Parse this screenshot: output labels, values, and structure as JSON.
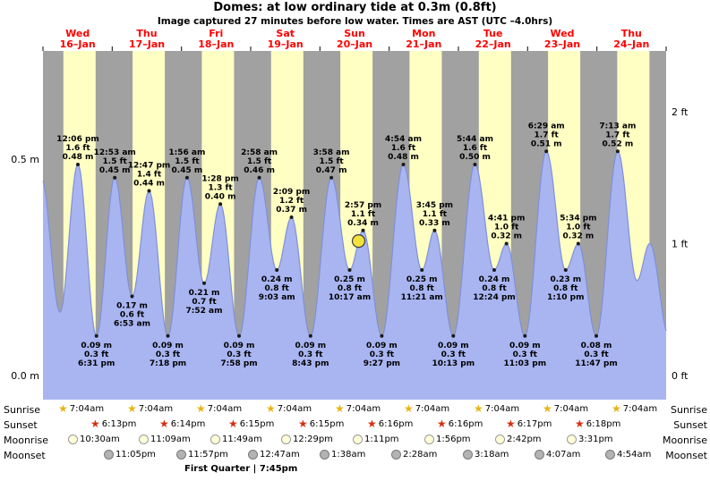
{
  "header": {
    "title": "Domes: at low  ordinary tide at 0.3m (0.8ft)",
    "subtitle": "Image captured 27 minutes before low water. Times are AST (UTC –4.0hrs)"
  },
  "chart_data": {
    "type": "area",
    "title": "Domes: at low ordinary tide at 0.3m (0.8ft)",
    "x_range_days": 9,
    "ylim_ft": [
      0,
      2.64
    ],
    "unit_left": "m",
    "unit_right": "ft",
    "y_axis_left": [
      {
        "label": "0.5 m",
        "ft": 1.64
      },
      {
        "label": "0.0 m",
        "ft": 0
      }
    ],
    "y_axis_right": [
      {
        "label": "2 ft",
        "ft": 2
      },
      {
        "label": "1 ft",
        "ft": 1
      },
      {
        "label": "0 ft",
        "ft": 0
      }
    ],
    "days": [
      {
        "name": "Wed",
        "date": "16–Jan"
      },
      {
        "name": "Thu",
        "date": "17–Jan"
      },
      {
        "name": "Fri",
        "date": "18–Jan"
      },
      {
        "name": "Sat",
        "date": "19–Jan"
      },
      {
        "name": "Sun",
        "date": "20–Jan"
      },
      {
        "name": "Mon",
        "date": "21–Jan"
      },
      {
        "name": "Tue",
        "date": "22–Jan"
      },
      {
        "name": "Wed",
        "date": "23–Jan"
      },
      {
        "name": "Thu",
        "date": "24–Jan"
      }
    ],
    "daylight": {
      "sunrise_hour": 7.07,
      "sunset_hour": 18.25
    },
    "extremes": [
      {
        "day": 0,
        "hour": -0.6,
        "ft": 1.5
      },
      {
        "day": 0,
        "hour": 5.9,
        "ft": 0.48
      },
      {
        "day": 0,
        "hour": 12.1,
        "ft": 1.6,
        "pos": "above",
        "lines": [
          "12:06 pm",
          "1.6 ft",
          "0.48 m"
        ]
      },
      {
        "day": 0,
        "hour": 18.52,
        "ft": 0.3,
        "pos": "below",
        "lines": [
          "0.09 m",
          "0.3 ft",
          "6:31 pm"
        ]
      },
      {
        "day": 1,
        "hour": 0.88,
        "ft": 1.5,
        "pos": "above",
        "lines": [
          "12:53 am",
          "1.5 ft",
          "0.45 m"
        ]
      },
      {
        "day": 1,
        "hour": 6.88,
        "ft": 0.6,
        "pos": "below",
        "lines": [
          "0.17 m",
          "0.6 ft",
          "6:53 am"
        ]
      },
      {
        "day": 1,
        "hour": 12.78,
        "ft": 1.4,
        "pos": "above",
        "lines": [
          "12:47 pm",
          "1.4 ft",
          "0.44 m"
        ]
      },
      {
        "day": 1,
        "hour": 19.3,
        "ft": 0.3,
        "pos": "below",
        "lines": [
          "0.09 m",
          "0.3 ft",
          "7:18 pm"
        ]
      },
      {
        "day": 2,
        "hour": 1.93,
        "ft": 1.5,
        "pos": "above",
        "lines": [
          "1:56 am",
          "1.5 ft",
          "0.45 m"
        ]
      },
      {
        "day": 2,
        "hour": 7.87,
        "ft": 0.7,
        "pos": "below",
        "lines": [
          "0.21 m",
          "0.7 ft",
          "7:52 am"
        ]
      },
      {
        "day": 2,
        "hour": 13.47,
        "ft": 1.3,
        "pos": "above",
        "lines": [
          "1:28 pm",
          "1.3 ft",
          "0.40 m"
        ]
      },
      {
        "day": 2,
        "hour": 19.97,
        "ft": 0.3,
        "pos": "below",
        "lines": [
          "0.09 m",
          "0.3 ft",
          "7:58 pm"
        ]
      },
      {
        "day": 3,
        "hour": 2.97,
        "ft": 1.5,
        "pos": "above",
        "lines": [
          "2:58 am",
          "1.5 ft",
          "0.46 m"
        ]
      },
      {
        "day": 3,
        "hour": 9.05,
        "ft": 0.8,
        "pos": "below",
        "lines": [
          "0.24 m",
          "0.8 ft",
          "9:03 am"
        ]
      },
      {
        "day": 3,
        "hour": 14.15,
        "ft": 1.2,
        "pos": "above",
        "lines": [
          "2:09 pm",
          "1.2 ft",
          "0.37 m"
        ]
      },
      {
        "day": 3,
        "hour": 20.72,
        "ft": 0.3,
        "pos": "below",
        "lines": [
          "0.09 m",
          "0.3 ft",
          "8:43 pm"
        ]
      },
      {
        "day": 4,
        "hour": 3.97,
        "ft": 1.5,
        "pos": "above",
        "lines": [
          "3:58 am",
          "1.5 ft",
          "0.47 m"
        ]
      },
      {
        "day": 4,
        "hour": 10.28,
        "ft": 0.8,
        "pos": "below",
        "lines": [
          "0.25 m",
          "0.8 ft",
          "10:17 am"
        ]
      },
      {
        "day": 4,
        "hour": 14.95,
        "ft": 1.1,
        "pos": "above",
        "lines": [
          "2:57 pm",
          "1.1 ft",
          "0.34 m"
        ]
      },
      {
        "day": 4,
        "hour": 21.45,
        "ft": 0.3,
        "pos": "below",
        "lines": [
          "0.09 m",
          "0.3 ft",
          "9:27 pm"
        ]
      },
      {
        "day": 5,
        "hour": 4.9,
        "ft": 1.6,
        "pos": "above",
        "lines": [
          "4:54 am",
          "1.6 ft",
          "0.48 m"
        ]
      },
      {
        "day": 5,
        "hour": 11.35,
        "ft": 0.8,
        "pos": "below",
        "lines": [
          "0.25 m",
          "0.8 ft",
          "11:21 am"
        ]
      },
      {
        "day": 5,
        "hour": 15.75,
        "ft": 1.1,
        "pos": "above",
        "lines": [
          "3:45 pm",
          "1.1 ft",
          "0.33 m"
        ]
      },
      {
        "day": 5,
        "hour": 22.22,
        "ft": 0.3,
        "pos": "below",
        "lines": [
          "0.09 m",
          "0.3 ft",
          "10:13 pm"
        ]
      },
      {
        "day": 6,
        "hour": 5.73,
        "ft": 1.6,
        "pos": "above",
        "lines": [
          "5:44 am",
          "1.6 ft",
          "0.50 m"
        ]
      },
      {
        "day": 6,
        "hour": 12.4,
        "ft": 0.8,
        "pos": "below",
        "lines": [
          "0.24 m",
          "0.8 ft",
          "12:24 pm"
        ]
      },
      {
        "day": 6,
        "hour": 16.68,
        "ft": 1.0,
        "pos": "above",
        "lines": [
          "4:41 pm",
          "1.0 ft",
          "0.32 m"
        ]
      },
      {
        "day": 6,
        "hour": 23.05,
        "ft": 0.3,
        "pos": "below",
        "lines": [
          "0.09 m",
          "0.3 ft",
          "11:03 pm"
        ]
      },
      {
        "day": 7,
        "hour": 6.48,
        "ft": 1.7,
        "pos": "above",
        "lines": [
          "6:29 am",
          "1.7 ft",
          "0.51 m"
        ]
      },
      {
        "day": 7,
        "hour": 13.17,
        "ft": 0.8,
        "pos": "below",
        "lines": [
          "0.23 m",
          "0.8 ft",
          "1:10 pm"
        ]
      },
      {
        "day": 7,
        "hour": 17.57,
        "ft": 1.0,
        "pos": "above",
        "lines": [
          "5:34 pm",
          "1.0 ft",
          "0.32 m"
        ]
      },
      {
        "day": 7,
        "hour": 23.78,
        "ft": 0.3,
        "pos": "below",
        "lines": [
          "0.08 m",
          "0.3 ft",
          "11:47 pm"
        ]
      },
      {
        "day": 8,
        "hour": 7.22,
        "ft": 1.7,
        "pos": "above",
        "lines": [
          "7:13 am",
          "1.7 ft",
          "0.52 m"
        ]
      },
      {
        "day": 8,
        "hour": 13.9,
        "ft": 0.72
      },
      {
        "day": 8,
        "hour": 18.3,
        "ft": 1.0
      },
      {
        "day": 8,
        "hour": 25.0,
        "ft": 0.3
      }
    ],
    "current_marker": {
      "day": 4,
      "hour": 13.4,
      "ft": 1.02
    },
    "colors": {
      "night_band": "#a1a1a1",
      "day_band": "#ffffc4",
      "tide_fill": "#a9b5f1",
      "tide_stroke": "#7f90da",
      "day_label": "#ff0000",
      "marker": "#f2e23c"
    }
  },
  "astro": {
    "rows": [
      {
        "id": "sunrise",
        "label": "Sunrise",
        "icon": "star",
        "color": "#e8b414",
        "entries": [
          {
            "day": 0,
            "hour": 7.07,
            "time": "7:04am"
          },
          {
            "day": 1,
            "hour": 7.07,
            "time": "7:04am"
          },
          {
            "day": 2,
            "hour": 7.07,
            "time": "7:04am"
          },
          {
            "day": 3,
            "hour": 7.07,
            "time": "7:04am"
          },
          {
            "day": 4,
            "hour": 7.07,
            "time": "7:04am"
          },
          {
            "day": 5,
            "hour": 7.07,
            "time": "7:04am"
          },
          {
            "day": 6,
            "hour": 7.07,
            "time": "7:04am"
          },
          {
            "day": 7,
            "hour": 7.07,
            "time": "7:04am"
          },
          {
            "day": 8,
            "hour": 7.07,
            "time": "7:04am"
          }
        ]
      },
      {
        "id": "sunset",
        "label": "Sunset",
        "icon": "star",
        "color": "#d52f10",
        "entries": [
          {
            "day": 0,
            "hour": 18.22,
            "time": "6:13pm"
          },
          {
            "day": 1,
            "hour": 18.23,
            "time": "6:14pm"
          },
          {
            "day": 2,
            "hour": 18.25,
            "time": "6:15pm"
          },
          {
            "day": 3,
            "hour": 18.25,
            "time": "6:15pm"
          },
          {
            "day": 4,
            "hour": 18.27,
            "time": "6:16pm"
          },
          {
            "day": 5,
            "hour": 18.27,
            "time": "6:16pm"
          },
          {
            "day": 6,
            "hour": 18.28,
            "time": "6:17pm"
          },
          {
            "day": 7,
            "hour": 18.3,
            "time": "6:18pm"
          }
        ]
      },
      {
        "id": "moonrise",
        "label": "Moonrise",
        "icon": "disc",
        "color": "#ffffd8",
        "border": "#9a9a9a",
        "entries": [
          {
            "day": 0,
            "hour": 10.5,
            "time": "10:30am"
          },
          {
            "day": 1,
            "hour": 11.15,
            "time": "11:09am"
          },
          {
            "day": 2,
            "hour": 11.82,
            "time": "11:49am"
          },
          {
            "day": 3,
            "hour": 12.48,
            "time": "12:29pm"
          },
          {
            "day": 4,
            "hour": 13.18,
            "time": "1:11pm"
          },
          {
            "day": 5,
            "hour": 13.93,
            "time": "1:56pm"
          },
          {
            "day": 6,
            "hour": 14.7,
            "time": "2:42pm"
          },
          {
            "day": 7,
            "hour": 15.52,
            "time": "3:31pm"
          }
        ]
      },
      {
        "id": "moonset",
        "label": "Moonset",
        "icon": "disc",
        "color": "#b3b3b3",
        "border": "#7a7a7a",
        "entries": [
          {
            "day": 0,
            "hour": 23.08,
            "time": "11:05pm"
          },
          {
            "day": 1,
            "hour": 23.95,
            "time": "11:57pm"
          },
          {
            "day": 3,
            "hour": 0.78,
            "time": "12:47am"
          },
          {
            "day": 4,
            "hour": 1.63,
            "time": "1:38am"
          },
          {
            "day": 5,
            "hour": 2.47,
            "time": "2:28am"
          },
          {
            "day": 6,
            "hour": 3.3,
            "time": "3:18am"
          },
          {
            "day": 7,
            "hour": 4.12,
            "time": "4:07am"
          },
          {
            "day": 8,
            "hour": 4.9,
            "time": "4:54am"
          }
        ]
      }
    ],
    "footnote": {
      "text": "First Quarter | 7:45pm",
      "day": 2,
      "hour": 19.75
    }
  }
}
